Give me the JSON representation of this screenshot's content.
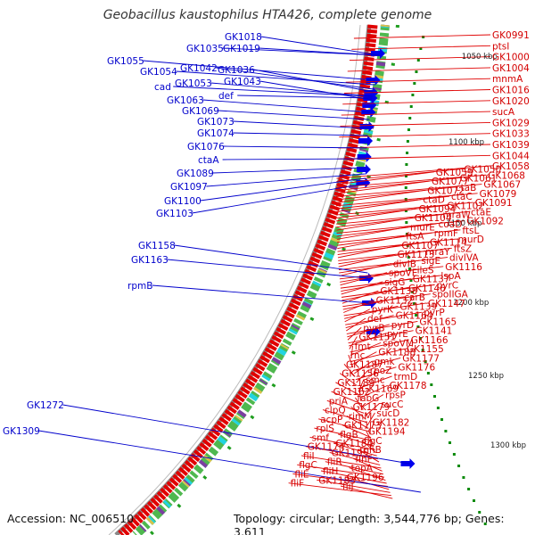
{
  "header": {
    "title": "Geobacillus kaustophilus HTA426, complete genome"
  },
  "footer": {
    "accession": "Accession: NC_006510",
    "summary": "Topology: circular; Length: 3,544,776 bp; Genes: 3,611"
  },
  "colors": {
    "backbone": "#8a8a8a",
    "forward_genes": "#e00000",
    "right_labels": "#d40000",
    "left_labels": "#0000cc",
    "reverse_genes": "#0000ee",
    "tick_dots": "#0a8a0a"
  },
  "scale_labels": [
    "1050 kbp",
    "1100 kbp",
    "1150 kbp",
    "1200 kbp",
    "1250 kbp",
    "1300 kbp"
  ],
  "left_labels": [
    "GK1018",
    "GK1035",
    "GK1019",
    "GK1055",
    "GK1054",
    "GK1042",
    "GK1036",
    "cad",
    "GK1053",
    "GK1043",
    "def",
    "GK1063",
    "GK1069",
    "GK1073",
    "GK1074",
    "GK1076",
    "ctaA",
    "GK1089",
    "GK1097",
    "GK1100",
    "GK1103",
    "GK1158",
    "GK1163",
    "rpmB",
    "GK1272",
    "GK1309"
  ],
  "right_labels": [
    "GK0991",
    "ptsI",
    "GK1000",
    "GK1004",
    "mnmA",
    "GK1016",
    "GK1020",
    "sucA",
    "GK1029",
    "GK1033",
    "GK1039",
    "GK1044",
    "GK1058",
    "GK1050",
    "GK1059",
    "GK1068",
    "GK1061",
    "GK1077",
    "GK1067",
    "ctaB",
    "GK1072",
    "GK1079",
    "ctaC",
    "ctaD",
    "GK1091",
    "GK1102",
    "GK1094",
    "ctaE",
    "mraW",
    "GK1104",
    "GK1092",
    "coaD",
    "murE",
    "ftsL",
    "rpmF",
    "ftsA",
    "murD",
    "GK1114",
    "GK1107",
    "ftsZ",
    "mraY",
    "GK1113",
    "divIVA",
    "sigE",
    "divIB",
    "GK1116",
    "ileS",
    "spoVE",
    "lspA",
    "GK1137",
    "sigG",
    "pyrC",
    "GK1146",
    "GK1138",
    "spoIIGA",
    "carB",
    "GK1132",
    "GK1147",
    "GK1139",
    "pyrK",
    "pyrP",
    "GK1164",
    "def",
    "GK1165",
    "pyrD",
    "pyrB",
    "GK1141",
    "pyrE",
    "GK1151",
    "GK1166",
    "spoVM",
    "fmt",
    "GK1155",
    "GK1188",
    "rnc",
    "GK1177",
    "gmk",
    "GK1187",
    "GK1176",
    "rpoZ",
    "GK1156",
    "trmD",
    "smc",
    "GK1189",
    "GK1178",
    "GK1169",
    "GK1162",
    "rpsP",
    "fabG",
    "priA",
    "sucC",
    "GK1179",
    "clpQ",
    "sucD",
    "rimM",
    "acpP",
    "GK1182",
    "GK1173",
    "rplS",
    "GK1194",
    "flgB",
    "smf",
    "flgC",
    "GK1184",
    "GK1174",
    "rnhB",
    "GK1195",
    "fliI",
    "flhF",
    "fliR",
    "flgC",
    "topA",
    "fliH",
    "fliE",
    "GK1196",
    "GK1183",
    "fliF",
    "fliJ"
  ]
}
